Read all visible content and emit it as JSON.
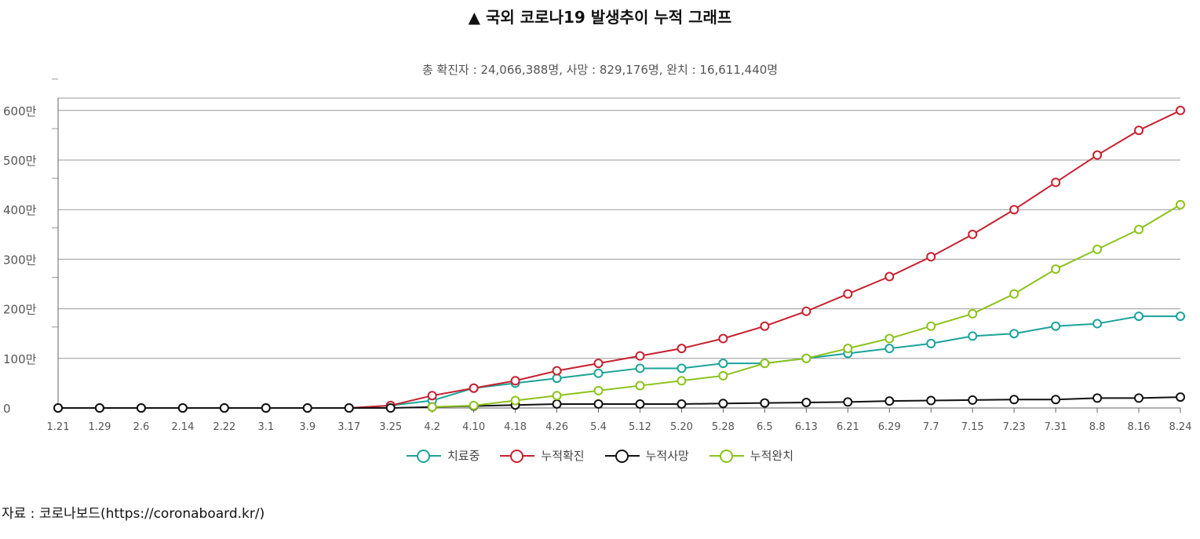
{
  "chart_data": {
    "type": "line",
    "title": "▲ 국외 코로나19 발생추이 누적 그래프",
    "subtitle": "총 확진자 : 24,066,388명, 사망 : 829,176명, 완치 : 16,611,440명",
    "ylim": [
      0,
      6250000
    ],
    "ytick_values": [
      0,
      1000000,
      2000000,
      3000000,
      4000000,
      5000000,
      6000000
    ],
    "ytick_labels": [
      "0",
      "100만",
      "200만",
      "300만",
      "400만",
      "500만",
      "600만"
    ],
    "categories": [
      "1.21",
      "1.29",
      "2.6",
      "2.14",
      "2.22",
      "3.1",
      "3.9",
      "3.17",
      "3.25",
      "4.2",
      "4.10",
      "4.18",
      "4.26",
      "5.4",
      "5.12",
      "5.20",
      "5.28",
      "6.5",
      "6.13",
      "6.21",
      "6.29",
      "7.7",
      "7.15",
      "7.23",
      "7.31",
      "8.8",
      "8.16",
      "8.24"
    ],
    "series": [
      {
        "name": "치료중",
        "color": "#1aa39a",
        "values": [
          0,
          0,
          0,
          0,
          0,
          0,
          0,
          0,
          50000,
          150000,
          400000,
          500000,
          600000,
          700000,
          800000,
          800000,
          900000,
          900000,
          1000000,
          1100000,
          1200000,
          1300000,
          1450000,
          1500000,
          1650000,
          1700000,
          1850000,
          1850000
        ]
      },
      {
        "name": "누적확진",
        "color": "#c8202f",
        "values": [
          0,
          0,
          0,
          0,
          0,
          0,
          0,
          0,
          50000,
          250000,
          400000,
          550000,
          750000,
          900000,
          1050000,
          1200000,
          1400000,
          1650000,
          1950000,
          2300000,
          2650000,
          3050000,
          3500000,
          4000000,
          4550000,
          5100000,
          5600000,
          6000000
        ]
      },
      {
        "name": "누적사망",
        "color": "#111111",
        "values": [
          0,
          0,
          0,
          0,
          0,
          0,
          0,
          0,
          0,
          20000,
          40000,
          60000,
          80000,
          80000,
          80000,
          80000,
          90000,
          100000,
          110000,
          120000,
          140000,
          150000,
          160000,
          170000,
          170000,
          200000,
          200000,
          220000
        ]
      },
      {
        "name": "누적완치",
        "color": "#8cc21c",
        "values": [
          null,
          null,
          null,
          null,
          null,
          null,
          null,
          null,
          null,
          20000,
          50000,
          150000,
          250000,
          350000,
          450000,
          550000,
          650000,
          900000,
          1000000,
          1200000,
          1400000,
          1650000,
          1900000,
          2300000,
          2800000,
          3200000,
          3600000,
          4100000
        ]
      }
    ]
  },
  "source": "자료 : 코로나보드(https://coronaboard.kr/)"
}
